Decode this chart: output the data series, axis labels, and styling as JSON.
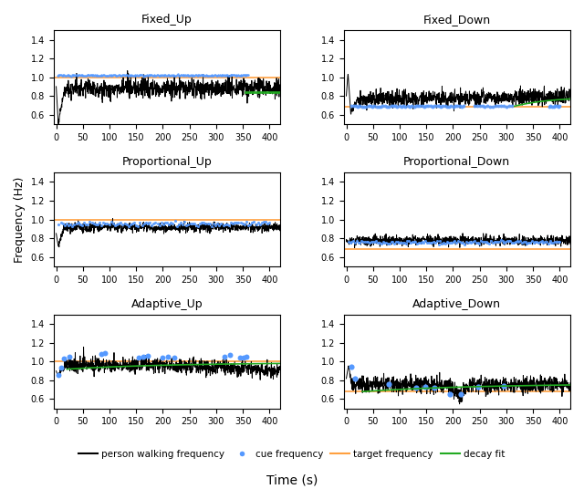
{
  "titles": [
    "Fixed_Up",
    "Fixed_Down",
    "Proportional_Up",
    "Proportional_Down",
    "Adaptive_Up",
    "Adaptive_Down"
  ],
  "ylim": [
    0.5,
    1.5
  ],
  "xlim": [
    -5,
    420
  ],
  "xticks": [
    0,
    50,
    100,
    150,
    200,
    250,
    300,
    350,
    400
  ],
  "yticks": [
    0.6,
    0.8,
    1.0,
    1.2,
    1.4
  ],
  "xlabel": "Time (s)",
  "ylabel": "Frequency (Hz)",
  "target_up": 1.0,
  "target_down": 0.68,
  "walk_color": "#000000",
  "cue_color": "#5599ff",
  "target_color": "#ffa040",
  "decay_color": "#22aa22",
  "legend_labels": [
    "person walking frequency",
    "cue frequency",
    "target frequency",
    "decay fit"
  ]
}
